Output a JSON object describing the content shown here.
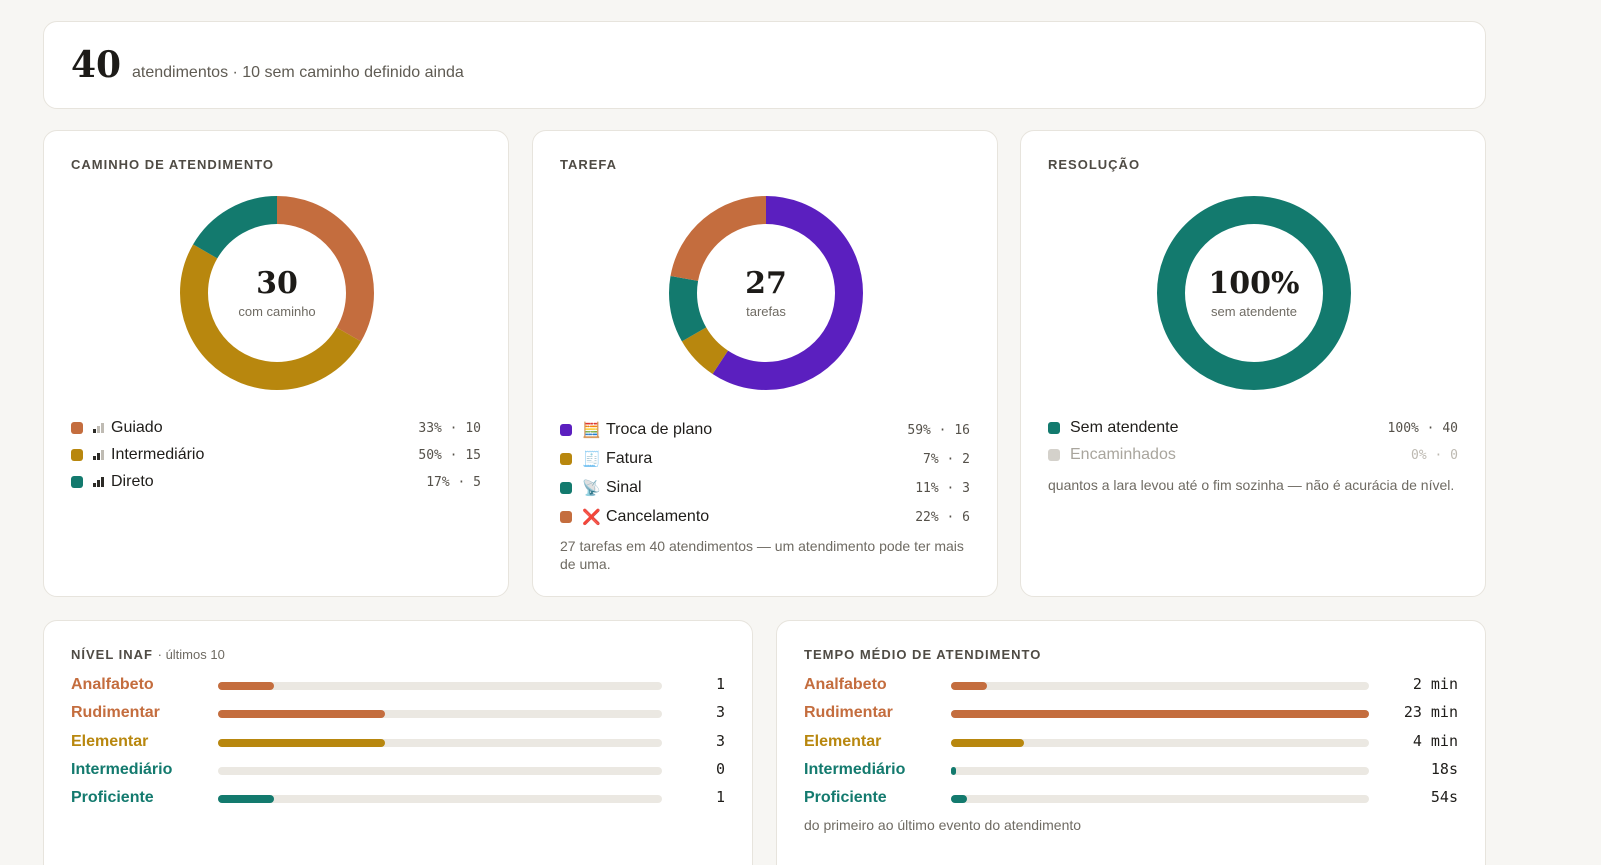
{
  "colors": {
    "orange": "#c46d3e",
    "gold": "#b8870e",
    "teal": "#137a6e",
    "purple": "#5b1fbf",
    "gray": "#d4d1cb",
    "track": "#ebe8e2"
  },
  "summary": {
    "total": "40",
    "description": "atendimentos · 10 sem caminho definido ainda"
  },
  "caminho": {
    "title": "CAMINHO DE ATENDIMENTO",
    "center_value": "30",
    "center_label": "com caminho",
    "items": [
      {
        "label": "Guiado",
        "value": 10,
        "stat": "33% · 10",
        "color": "#c46d3e",
        "icon": "signal-1-icon",
        "level": 1
      },
      {
        "label": "Intermediário",
        "value": 15,
        "stat": "50% · 15",
        "color": "#b8870e",
        "icon": "signal-2-icon",
        "level": 2
      },
      {
        "label": "Direto",
        "value": 5,
        "stat": "17% · 5",
        "color": "#137a6e",
        "icon": "signal-3-icon",
        "level": 3
      }
    ]
  },
  "tarefa": {
    "title": "TAREFA",
    "center_value": "27",
    "center_label": "tarefas",
    "items": [
      {
        "label": "Troca de plano",
        "value": 16,
        "stat": "59% · 16",
        "color": "#5b1fbf",
        "icon": "calculator-icon",
        "glyph": "🧮"
      },
      {
        "label": "Fatura",
        "value": 2,
        "stat": "7% · 2",
        "color": "#b8870e",
        "icon": "receipt-icon",
        "glyph": "🧾"
      },
      {
        "label": "Sinal",
        "value": 3,
        "stat": "11% · 3",
        "color": "#137a6e",
        "icon": "satellite-icon",
        "glyph": "📡"
      },
      {
        "label": "Cancelamento",
        "value": 6,
        "stat": "22% · 6",
        "color": "#c46d3e",
        "icon": "cross-mark-icon",
        "glyph": "❌"
      }
    ],
    "note": "27 tarefas em 40 atendimentos — um atendimento pode ter mais de uma."
  },
  "resolucao": {
    "title": "RESOLUÇÃO",
    "center_value": "100%",
    "center_label": "sem atendente",
    "items": [
      {
        "label": "Sem atendente",
        "value": 40,
        "stat": "100% · 40",
        "color": "#137a6e",
        "muted": false
      },
      {
        "label": "Encaminhados",
        "value": 0,
        "stat": "0% · 0",
        "color": "#d4d1cb",
        "muted": true
      }
    ],
    "note": "quantos a lara levou até o fim sozinha — não é acurácia de nível."
  },
  "inaf": {
    "title": "NÍVEL INAF",
    "subtitle": "· últimos 10",
    "max": 4,
    "rows": [
      {
        "label": "Analfabeto",
        "value": 1,
        "display": "1",
        "color": "#c46d3e"
      },
      {
        "label": "Rudimentar",
        "value": 3,
        "display": "3",
        "color": "#c46d3e"
      },
      {
        "label": "Elementar",
        "value": 3,
        "display": "3",
        "color": "#b8870e"
      },
      {
        "label": "Intermediário",
        "value": 0,
        "display": "0",
        "color": "#137a6e"
      },
      {
        "label": "Proficiente",
        "value": 1,
        "display": "1",
        "color": "#137a6e"
      }
    ]
  },
  "tempo": {
    "title": "TEMPO MÉDIO DE ATENDIMENTO",
    "max_seconds": 1380,
    "rows": [
      {
        "label": "Analfabeto",
        "seconds": 120,
        "display": "2 min",
        "color": "#c46d3e"
      },
      {
        "label": "Rudimentar",
        "seconds": 1380,
        "display": "23 min",
        "color": "#c46d3e"
      },
      {
        "label": "Elementar",
        "seconds": 240,
        "display": "4 min",
        "color": "#b8870e"
      },
      {
        "label": "Intermediário",
        "seconds": 18,
        "display": "18s",
        "color": "#137a6e"
      },
      {
        "label": "Proficiente",
        "seconds": 54,
        "display": "54s",
        "color": "#137a6e"
      }
    ],
    "note": "do primeiro ao último evento do atendimento"
  }
}
